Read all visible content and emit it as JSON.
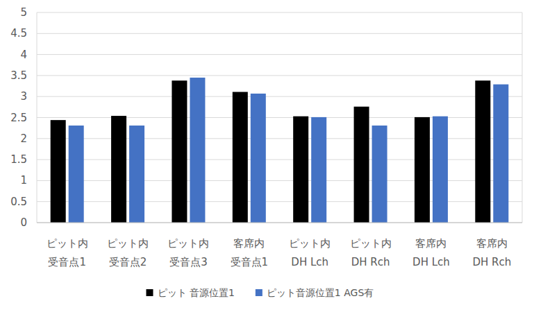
{
  "chart_data": {
    "type": "bar",
    "categories": [
      "ピット内\n受音点1",
      "ピット内\n受音点2",
      "ピット内\n受音点3",
      "客席内\n受音点1",
      "ピット内\nDH Lch",
      "ピット内\nDH Rch",
      "客席内\nDH Lch",
      "客席内\nDH Rch"
    ],
    "series": [
      {
        "name": "ピット 音源位置1",
        "color": "#000000",
        "values": [
          2.44,
          2.54,
          3.38,
          3.11,
          2.53,
          2.76,
          2.51,
          3.38
        ]
      },
      {
        "name": "ピット音源位置1 AGS有",
        "color": "#4472c4",
        "values": [
          2.31,
          2.31,
          3.45,
          3.07,
          2.51,
          2.31,
          2.53,
          3.29
        ]
      }
    ],
    "ylim": [
      0,
      5
    ],
    "yticks": [
      0,
      0.5,
      1,
      1.5,
      2,
      2.5,
      3,
      3.5,
      4,
      4.5,
      5
    ],
    "grid": true,
    "legend": "bottom"
  }
}
